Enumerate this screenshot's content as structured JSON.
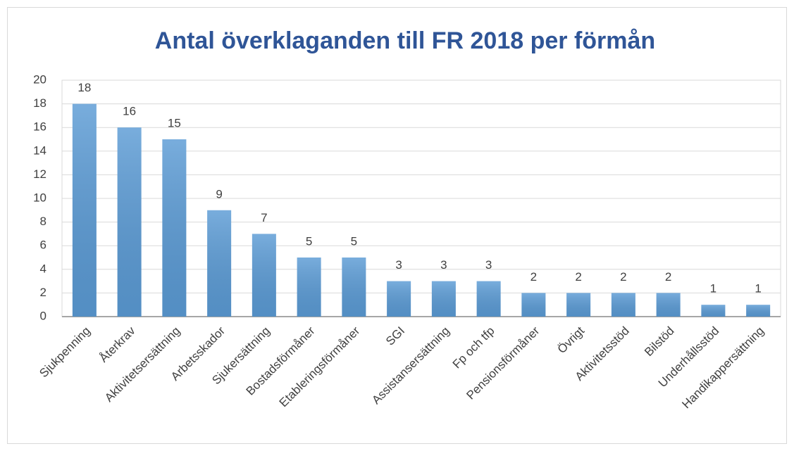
{
  "chart_data": {
    "type": "bar",
    "title": "Antal överklaganden till FR 2018 per förmån",
    "categories": [
      "Sjukpenning",
      "Återkrav",
      "Aktivitetsersättning",
      "Arbetsskador",
      "Sjukersättning",
      "Bostadsförmåner",
      "Etableringsförmåner",
      "SGI",
      "Assistansersättning",
      "Fp och tfp",
      "Pensionsförmåner",
      "Övrigt",
      "Aktivitetsstöd",
      "Bilstöd",
      "Underhållsstöd",
      "Handikappersättning"
    ],
    "values": [
      18,
      16,
      15,
      9,
      7,
      5,
      5,
      3,
      3,
      3,
      2,
      2,
      2,
      2,
      1,
      1
    ],
    "color": "#5b9bd5",
    "ylim": [
      0,
      20
    ],
    "yticks": [
      0,
      2,
      4,
      6,
      8,
      10,
      12,
      14,
      16,
      18,
      20
    ],
    "grid": true
  }
}
